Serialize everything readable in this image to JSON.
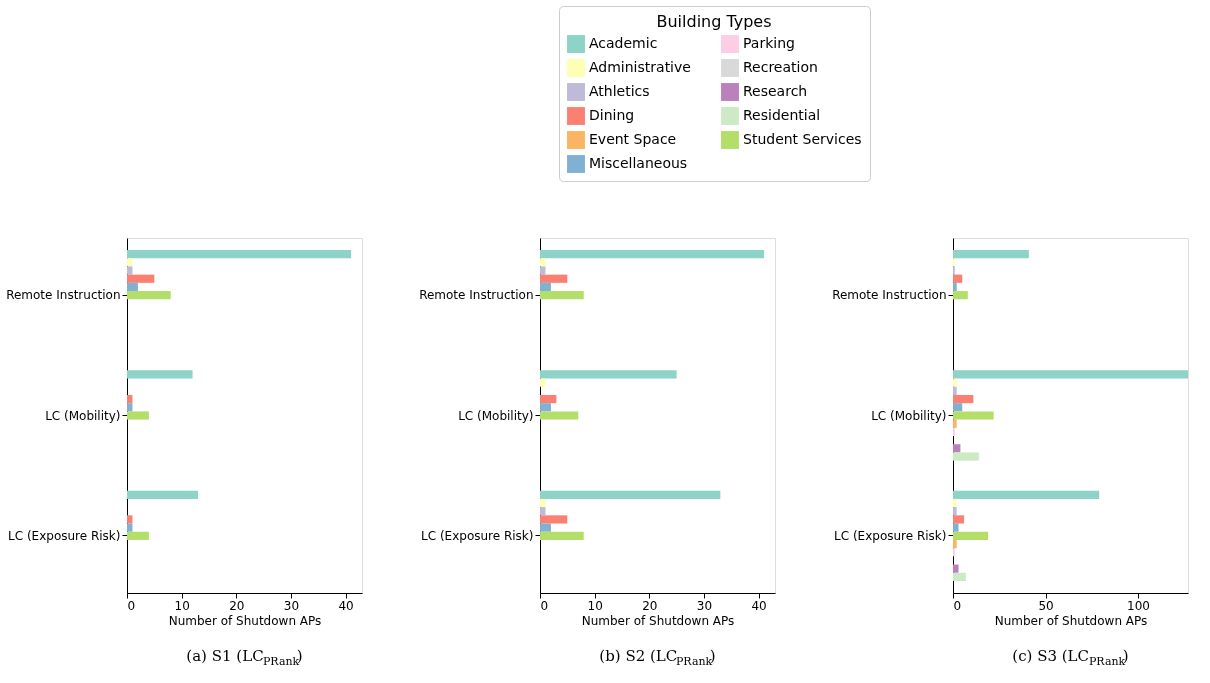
{
  "chart_data": [
    {
      "type": "bar",
      "orientation": "horizontal",
      "title": "(a) S1 (LC$_{PRank}$)",
      "xlabel": "Number of Shutdown APs",
      "categories": [
        "Remote Instruction",
        "LC (Mobility)",
        "LC (Exposure Risk)"
      ],
      "xlim": [
        0,
        43
      ],
      "xticks": [
        0,
        10,
        20,
        30,
        40
      ],
      "grid": false,
      "legend": "top",
      "legend_title": "Building Types",
      "series": [
        {
          "name": "Academic",
          "color": "#8dd3c7",
          "values": [
            41,
            12,
            13
          ]
        },
        {
          "name": "Administrative",
          "color": "#ffffb3",
          "values": [
            1,
            0,
            0
          ]
        },
        {
          "name": "Athletics",
          "color": "#bebada",
          "values": [
            1,
            0,
            0
          ]
        },
        {
          "name": "Dining",
          "color": "#fb8072",
          "values": [
            5,
            1,
            1
          ]
        },
        {
          "name": "Miscellaneous",
          "color": "#80b1d3",
          "values": [
            2,
            1,
            1
          ]
        },
        {
          "name": "Student Services",
          "color": "#b3de69",
          "values": [
            8,
            4,
            4
          ]
        }
      ]
    },
    {
      "type": "bar",
      "orientation": "horizontal",
      "title": "(b) S2 (LC$_{PRank}$)",
      "xlabel": "Number of Shutdown APs",
      "categories": [
        "Remote Instruction",
        "LC (Mobility)",
        "LC (Exposure Risk)"
      ],
      "xlim": [
        0,
        43
      ],
      "xticks": [
        0,
        10,
        20,
        30,
        40
      ],
      "grid": false,
      "series": [
        {
          "name": "Academic",
          "color": "#8dd3c7",
          "values": [
            41,
            25,
            33
          ]
        },
        {
          "name": "Administrative",
          "color": "#ffffb3",
          "values": [
            1,
            1,
            1
          ]
        },
        {
          "name": "Athletics",
          "color": "#bebada",
          "values": [
            1,
            0,
            1
          ]
        },
        {
          "name": "Dining",
          "color": "#fb8072",
          "values": [
            5,
            3,
            5
          ]
        },
        {
          "name": "Miscellaneous",
          "color": "#80b1d3",
          "values": [
            2,
            2,
            2
          ]
        },
        {
          "name": "Student Services",
          "color": "#b3de69",
          "values": [
            8,
            7,
            8
          ]
        }
      ]
    },
    {
      "type": "bar",
      "orientation": "horizontal",
      "title": "(c) S3 (LC$_{PRank}$)",
      "xlabel": "Number of Shutdown APs",
      "categories": [
        "Remote Instruction",
        "LC (Mobility)",
        "LC (Exposure Risk)"
      ],
      "xlim": [
        0,
        127
      ],
      "xticks": [
        0,
        50,
        100
      ],
      "grid": false,
      "legend": "top",
      "series": [
        {
          "name": "Academic",
          "color": "#8dd3c7",
          "values": [
            41,
            127,
            79
          ]
        },
        {
          "name": "Administrative",
          "color": "#ffffb3",
          "values": [
            1,
            2,
            2
          ]
        },
        {
          "name": "Athletics",
          "color": "#bebada",
          "values": [
            1,
            2,
            2
          ]
        },
        {
          "name": "Dining",
          "color": "#fb8072",
          "values": [
            5,
            11,
            6
          ]
        },
        {
          "name": "Miscellaneous",
          "color": "#80b1d3",
          "values": [
            2,
            5,
            3
          ]
        },
        {
          "name": "Student Services",
          "color": "#b3de69",
          "values": [
            8,
            22,
            19
          ]
        },
        {
          "name": "Event Space",
          "color": "#fdb462",
          "values": [
            0,
            2,
            2
          ]
        },
        {
          "name": "Parking",
          "color": "#fccde5",
          "values": [
            0,
            1,
            1
          ]
        },
        {
          "name": "Recreation",
          "color": "#d9d9d9",
          "values": [
            0,
            0,
            0
          ]
        },
        {
          "name": "Research",
          "color": "#bc80bd",
          "values": [
            0,
            4,
            3
          ]
        },
        {
          "name": "Residential",
          "color": "#ccebc5",
          "values": [
            0,
            14,
            7
          ]
        }
      ]
    }
  ]
}
